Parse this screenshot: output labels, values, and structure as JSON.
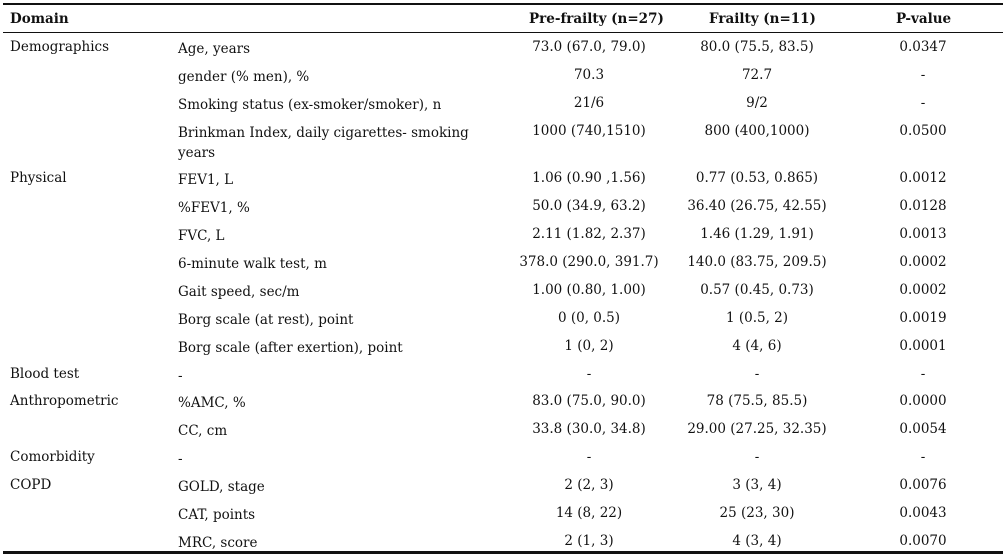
{
  "table": {
    "headers": {
      "domain": "Domain",
      "item": "",
      "pre_frailty": "Pre-frailty (n=27)",
      "frailty": "Frailty (n=11)",
      "p_value": "P-value"
    },
    "rows": [
      {
        "domain": "Demographics",
        "item": "Age, years",
        "pre": "73.0 (67.0, 79.0)",
        "frailty": "80.0 (75.5, 83.5)",
        "p": "0.0347"
      },
      {
        "domain": "",
        "item": "gender (% men), %",
        "pre": "70.3",
        "frailty": "72.7",
        "p": "-"
      },
      {
        "domain": "",
        "item": "Smoking status (ex-smoker/smoker), n",
        "pre": "21/6",
        "frailty": "9/2",
        "p": "-"
      },
      {
        "domain": "",
        "item": "Brinkman Index, daily cigarettes- smoking years",
        "pre": "1000 (740,1510)",
        "frailty": "800 (400,1000)",
        "p": "0.0500"
      },
      {
        "domain": "Physical",
        "item": "FEV1, L",
        "pre": "1.06 (0.90 ,1.56)",
        "frailty": "0.77 (0.53, 0.865)",
        "p": "0.0012"
      },
      {
        "domain": "",
        "item": "%FEV1, %",
        "pre": "50.0 (34.9, 63.2)",
        "frailty": "36.40 (26.75, 42.55)",
        "p": "0.0128"
      },
      {
        "domain": "",
        "item": "FVC, L",
        "pre": "2.11 (1.82, 2.37)",
        "frailty": "1.46 (1.29, 1.91)",
        "p": "0.0013"
      },
      {
        "domain": "",
        "item": "6-minute walk test, m",
        "pre": "378.0 (290.0, 391.7)",
        "frailty": "140.0 (83.75, 209.5)",
        "p": "0.0002"
      },
      {
        "domain": "",
        "item": "Gait speed, sec/m",
        "pre": "1.00 (0.80, 1.00)",
        "frailty": "0.57 (0.45, 0.73)",
        "p": "0.0002"
      },
      {
        "domain": "",
        "item": "Borg scale (at rest), point",
        "pre": "0 (0, 0.5)",
        "frailty": "1 (0.5, 2)",
        "p": "0.0019"
      },
      {
        "domain": "",
        "item": "Borg scale (after exertion), point",
        "pre": "1 (0, 2)",
        "frailty": "4 (4, 6)",
        "p": "0.0001"
      },
      {
        "domain": "Blood test",
        "item": "-",
        "pre": "-",
        "frailty": "-",
        "p": "-"
      },
      {
        "domain": "Anthropometric",
        "item": "%AMC, %",
        "pre": "83.0 (75.0, 90.0)",
        "frailty": "78 (75.5, 85.5)",
        "p": "0.0000"
      },
      {
        "domain": "",
        "item": "CC, cm",
        "pre": "33.8 (30.0, 34.8)",
        "frailty": "29.00 (27.25, 32.35)",
        "p": "0.0054"
      },
      {
        "domain": "Comorbidity",
        "item": "-",
        "pre": "-",
        "frailty": "-",
        "p": "-"
      },
      {
        "domain": "COPD",
        "item": "GOLD, stage",
        "pre": "2 (2, 3)",
        "frailty": "3 (3, 4)",
        "p": "0.0076"
      },
      {
        "domain": "",
        "item": "CAT, points",
        "pre": "14 (8, 22)",
        "frailty": "25 (23, 30)",
        "p": "0.0043"
      },
      {
        "domain": "",
        "item": "MRC, score",
        "pre": "2 (1, 3)",
        "frailty": "4 (3, 4)",
        "p": "0.0070"
      }
    ]
  }
}
